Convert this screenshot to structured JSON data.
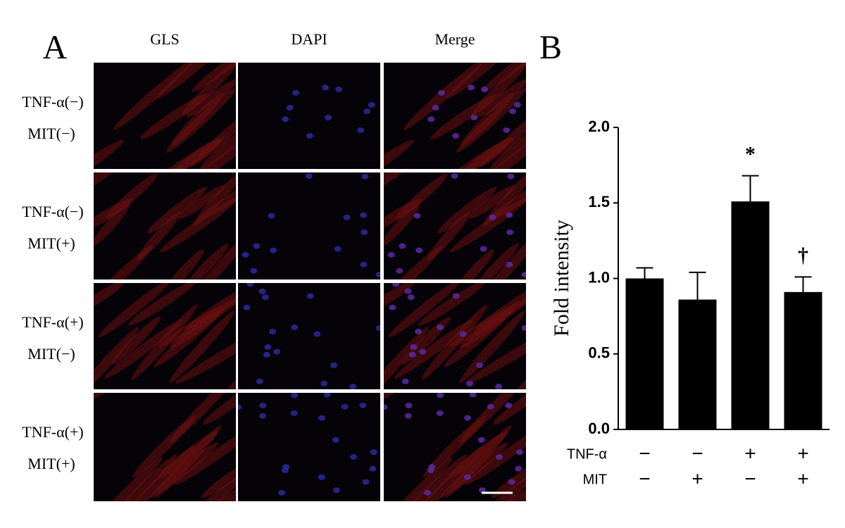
{
  "panel_a": {
    "label": "A",
    "columns": [
      "GLS",
      "DAPI",
      "Merge"
    ],
    "rows": [
      [
        "TNF-α(−)",
        "MIT(−)"
      ],
      [
        "TNF-α(−)",
        "MIT(+)"
      ],
      [
        "TNF-α(+)",
        "MIT(−)"
      ],
      [
        "TNF-α(+)",
        "MIT(+)"
      ]
    ]
  },
  "chart_data": {
    "type": "bar",
    "panel_label": "B",
    "y_label": "Fold intensity",
    "values": [
      1.0,
      0.86,
      1.51,
      0.91
    ],
    "errors": [
      0.07,
      0.18,
      0.17,
      0.1
    ],
    "bar_annotations": [
      null,
      null,
      "*",
      "†"
    ],
    "color": "#000000",
    "conditions": [
      {
        "label": "TNF-α",
        "signs": [
          "−",
          "−",
          "+",
          "+"
        ]
      },
      {
        "label": "MIT",
        "signs": [
          "−",
          "+",
          "−",
          "+"
        ]
      }
    ],
    "ylim": [
      0,
      2
    ],
    "yticks": [
      {
        "value": 0,
        "label": "0.0"
      },
      0.5,
      {
        "value": 1,
        "label": "1.0"
      },
      1.5,
      {
        "value": 2,
        "label": "2.0"
      }
    ]
  }
}
